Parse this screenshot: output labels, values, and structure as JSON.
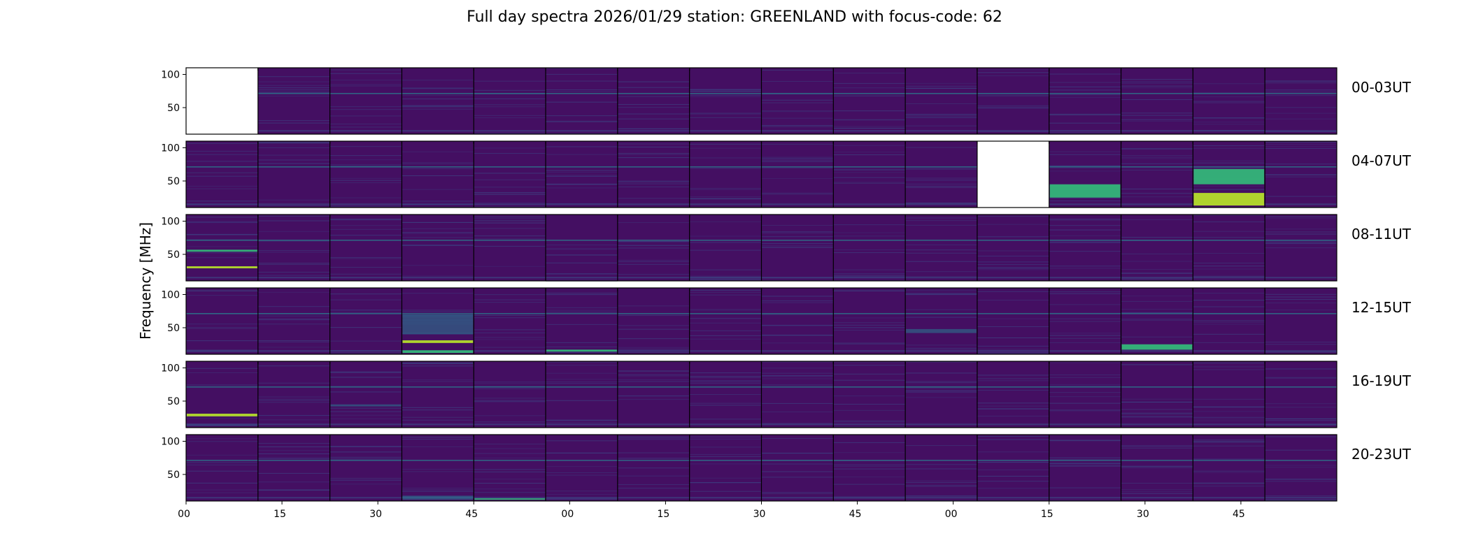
{
  "chart_data": {
    "type": "heatmap",
    "title": "Full day spectra 2026/01/29 station: GREENLAND with focus-code: 62",
    "ylabel": "Frequency [MHz]",
    "ylim": [
      10,
      110
    ],
    "yticks": [
      "100",
      "50"
    ],
    "xtick_labels": [
      "00",
      "15",
      "30",
      "45",
      "00",
      "15",
      "30",
      "45",
      "00",
      "15",
      "30",
      "45"
    ],
    "rows": [
      {
        "label": "00-03UT",
        "missing_panels": [
          0
        ],
        "bright_bands": []
      },
      {
        "label": "04-07UT",
        "missing_panels": [
          11
        ],
        "bright_bands": [
          {
            "panel": 14,
            "fmin": 13,
            "fmax": 32,
            "intensity": "high"
          },
          {
            "panel": 14,
            "fmin": 45,
            "fmax": 68,
            "intensity": "medium"
          },
          {
            "panel": 12,
            "fmin": 25,
            "fmax": 45,
            "intensity": "medium"
          }
        ]
      },
      {
        "label": "08-11UT",
        "missing_panels": [],
        "bright_bands": [
          {
            "panel": 0,
            "fmin": 29,
            "fmax": 32,
            "intensity": "high"
          },
          {
            "panel": 0,
            "fmin": 54,
            "fmax": 57,
            "intensity": "medium"
          }
        ]
      },
      {
        "label": "12-15UT",
        "missing_panels": [],
        "bright_bands": [
          {
            "panel": 3,
            "fmin": 27,
            "fmax": 31,
            "intensity": "high"
          },
          {
            "panel": 3,
            "fmin": 12,
            "fmax": 16,
            "intensity": "medium"
          },
          {
            "panel": 3,
            "fmin": 40,
            "fmax": 70,
            "intensity": "low"
          },
          {
            "panel": 5,
            "fmin": 14,
            "fmax": 17,
            "intensity": "medium"
          },
          {
            "panel": 10,
            "fmin": 42,
            "fmax": 48,
            "intensity": "low"
          },
          {
            "panel": 13,
            "fmin": 17,
            "fmax": 25,
            "intensity": "medium"
          }
        ]
      },
      {
        "label": "16-19UT",
        "missing_panels": [],
        "bright_bands": [
          {
            "panel": 0,
            "fmin": 27,
            "fmax": 31,
            "intensity": "high"
          },
          {
            "panel": 2,
            "fmin": 42,
            "fmax": 45,
            "intensity": "low"
          }
        ]
      },
      {
        "label": "20-23UT",
        "missing_panels": [],
        "bright_bands": [
          {
            "panel": 3,
            "fmin": 12,
            "fmax": 18,
            "intensity": "low"
          },
          {
            "panel": 4,
            "fmin": 12,
            "fmax": 14,
            "intensity": "medium"
          }
        ]
      }
    ],
    "panels_per_row": 16,
    "colormap": "viridis",
    "colors": {
      "background": "#440f62",
      "line_faint": "#3b4f8b",
      "line_mid": "#2a7f8e",
      "band_high": "#b5de2b",
      "band_medium": "#34b679",
      "band_low": "#2c728e",
      "missing": "#ffffff"
    }
  }
}
